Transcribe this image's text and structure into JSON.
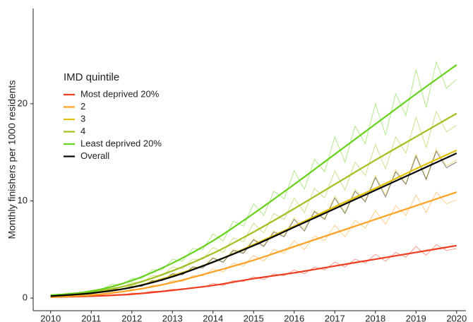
{
  "chart_data": {
    "type": "line",
    "y_label": "Monthly finishers per 1000 residents",
    "legend_title": "IMD quintile",
    "legend_position": "top-left",
    "x": [
      2010,
      2011,
      2012,
      2013,
      2014,
      2015,
      2016,
      2017,
      2018,
      2019,
      2020
    ],
    "raw_x": [
      2010,
      2010.25,
      2010.5,
      2010.75,
      2011,
      2011.25,
      2011.5,
      2011.75,
      2012,
      2012.25,
      2012.5,
      2012.75,
      2013,
      2013.25,
      2013.5,
      2013.75,
      2014,
      2014.25,
      2014.5,
      2014.75,
      2015,
      2015.25,
      2015.5,
      2015.75,
      2016,
      2016.25,
      2016.5,
      2016.75,
      2017,
      2017.25,
      2017.5,
      2017.75,
      2018,
      2018.25,
      2018.5,
      2018.75,
      2019,
      2019.25,
      2019.5,
      2019.75,
      2020
    ],
    "series": [
      {
        "name": "Most deprived 20%",
        "color": "#f03c1e",
        "values": [
          0.1,
          0.2,
          0.4,
          0.8,
          1.3,
          2.0,
          2.6,
          3.3,
          4.0,
          4.7,
          5.4
        ],
        "raw_values": [
          0.1,
          0.1,
          0.1,
          0.1,
          0.2,
          0.2,
          0.3,
          0.3,
          0.5,
          0.5,
          0.7,
          0.7,
          0.9,
          0.9,
          1.1,
          1.1,
          1.5,
          1.3,
          1.8,
          1.7,
          2.2,
          1.9,
          2.5,
          2.3,
          2.9,
          2.5,
          3.2,
          2.9,
          3.7,
          3.2,
          4.0,
          3.6,
          4.5,
          3.8,
          4.7,
          4.2,
          5.3,
          4.4,
          5.5,
          4.9,
          5.1
        ]
      },
      {
        "name": "2",
        "color": "#ffa020",
        "values": [
          0.1,
          0.3,
          0.8,
          1.6,
          2.7,
          3.9,
          5.3,
          6.7,
          8.1,
          9.5,
          10.9
        ],
        "raw_values": [
          0.1,
          0.2,
          0.2,
          0.3,
          0.4,
          0.4,
          0.6,
          0.6,
          0.9,
          0.9,
          1.3,
          1.3,
          1.8,
          1.7,
          2.3,
          2.3,
          3.0,
          2.7,
          3.6,
          3.3,
          4.4,
          3.8,
          5.0,
          4.6,
          5.9,
          5.0,
          6.4,
          5.9,
          7.5,
          6.3,
          8.0,
          7.2,
          9.0,
          7.6,
          9.5,
          8.5,
          10.6,
          8.8,
          10.9,
          9.7,
          10.1
        ]
      },
      {
        "name": "3",
        "color": "#e0c000",
        "values": [
          0.2,
          0.5,
          1.1,
          2.3,
          3.7,
          5.5,
          7.4,
          9.4,
          11.3,
          13.3,
          15.2
        ],
        "raw_values": [
          0.2,
          0.3,
          0.3,
          0.4,
          0.5,
          0.6,
          0.9,
          0.9,
          1.3,
          1.3,
          1.8,
          1.8,
          2.5,
          2.4,
          3.2,
          3.2,
          4.2,
          3.7,
          5.0,
          4.7,
          6.1,
          5.4,
          6.9,
          6.4,
          8.3,
          7.1,
          9.0,
          8.2,
          10.5,
          8.8,
          11.2,
          10.0,
          12.6,
          10.6,
          13.2,
          11.8,
          14.8,
          12.3,
          15.3,
          13.6,
          14.2
        ]
      },
      {
        "name": "4",
        "color": "#a0c020",
        "values": [
          0.3,
          0.6,
          1.4,
          2.8,
          4.6,
          6.8,
          9.2,
          11.7,
          14.2,
          16.6,
          19.0
        ],
        "raw_values": [
          0.2,
          0.3,
          0.4,
          0.5,
          0.6,
          0.7,
          1.1,
          1.1,
          1.6,
          1.6,
          2.3,
          2.3,
          3.2,
          3.0,
          4.0,
          4.0,
          5.2,
          4.7,
          6.2,
          5.8,
          7.7,
          6.7,
          8.7,
          8.1,
          10.3,
          8.8,
          11.3,
          10.3,
          13.1,
          11.1,
          14.0,
          12.6,
          15.8,
          13.3,
          16.6,
          14.9,
          18.6,
          15.5,
          19.2,
          17.1,
          17.8
        ]
      },
      {
        "name": "Least deprived 20%",
        "color": "#66d11c",
        "values": [
          0.3,
          0.7,
          1.8,
          3.6,
          5.9,
          8.7,
          11.7,
          14.8,
          17.9,
          21.0,
          24.0
        ],
        "raw_values": [
          0.3,
          0.4,
          0.5,
          0.6,
          0.8,
          0.9,
          1.4,
          1.4,
          2.0,
          2.0,
          2.9,
          2.9,
          4.0,
          3.8,
          5.1,
          5.0,
          6.6,
          5.9,
          7.9,
          7.4,
          9.7,
          8.5,
          11.0,
          10.2,
          13.1,
          11.2,
          14.3,
          13.0,
          16.6,
          14.0,
          17.7,
          15.9,
          20.0,
          16.8,
          21.0,
          18.8,
          23.5,
          19.6,
          24.3,
          21.6,
          22.5
        ]
      },
      {
        "name": "Overall",
        "color": "#000000",
        "values": [
          0.2,
          0.5,
          1.1,
          2.2,
          3.7,
          5.4,
          7.3,
          9.2,
          11.1,
          13.0,
          14.9
        ],
        "raw_values": [
          0.2,
          0.2,
          0.3,
          0.4,
          0.5,
          0.6,
          0.9,
          0.9,
          1.2,
          1.2,
          1.8,
          1.8,
          2.5,
          2.4,
          3.2,
          3.1,
          4.1,
          3.7,
          4.9,
          4.6,
          6.0,
          5.3,
          6.8,
          6.3,
          8.1,
          6.9,
          8.9,
          8.1,
          10.3,
          8.7,
          11.0,
          9.9,
          12.4,
          10.4,
          13.0,
          11.7,
          14.6,
          12.2,
          15.1,
          13.4,
          14.0
        ]
      }
    ],
    "xlim": [
      2009.57,
      2020.23
    ],
    "xticks": [
      2010,
      2011,
      2012,
      2013,
      2014,
      2015,
      2016,
      2017,
      2018,
      2019,
      2020
    ],
    "ylim": [
      -1.3,
      29.8
    ],
    "yticks": [
      0,
      10,
      20
    ],
    "grid": false
  }
}
